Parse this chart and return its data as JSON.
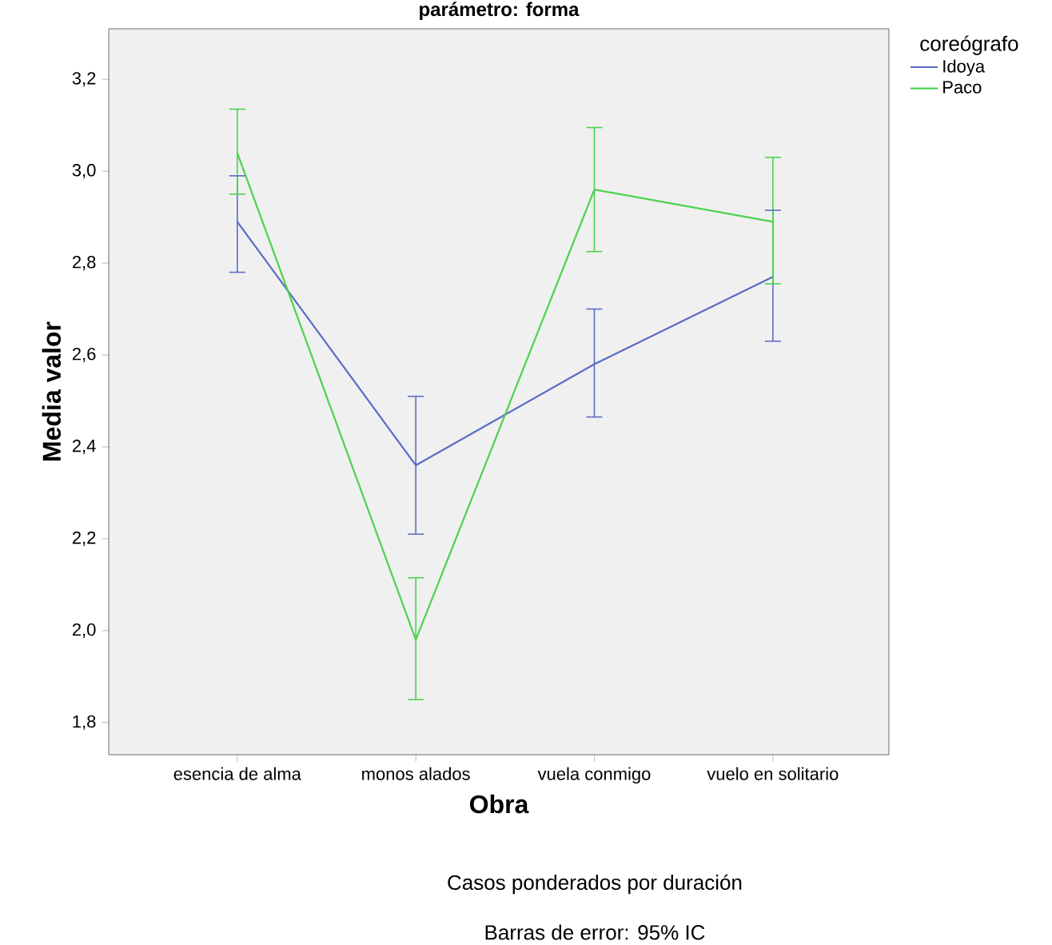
{
  "chart_data": {
    "type": "line",
    "title": "parámetro: forma",
    "xlabel": "Obra",
    "ylabel": "Media valor",
    "legend_title": "coreógrafo",
    "categories": [
      "esencia de alma",
      "monos alados",
      "vuela conmigo",
      "vuelo en solitario"
    ],
    "series": [
      {
        "name": "Idoya",
        "color": "#5b6cc4",
        "values": [
          2.89,
          2.36,
          2.58,
          2.77
        ],
        "errors": [
          [
            2.78,
            2.99
          ],
          [
            2.21,
            2.51
          ],
          [
            2.465,
            2.7
          ],
          [
            2.63,
            2.915
          ]
        ]
      },
      {
        "name": "Paco",
        "color": "#4cd24c",
        "values": [
          3.04,
          1.98,
          2.96,
          2.89
        ],
        "errors": [
          [
            2.95,
            3.135
          ],
          [
            1.85,
            2.115
          ],
          [
            2.825,
            3.095
          ],
          [
            2.755,
            3.03
          ]
        ]
      }
    ],
    "ylim": [
      1.73,
      3.31
    ],
    "yticks": [
      {
        "value": 1.8,
        "label": "1,8"
      },
      {
        "value": 2.0,
        "label": "2,0"
      },
      {
        "value": 2.2,
        "label": "2,2"
      },
      {
        "value": 2.4,
        "label": "2,4"
      },
      {
        "value": 2.6,
        "label": "2,6"
      },
      {
        "value": 2.8,
        "label": "2,8"
      },
      {
        "value": 3.0,
        "label": "3,0"
      },
      {
        "value": 3.2,
        "label": "3,2"
      }
    ],
    "grid": false,
    "legend": "top right",
    "marker": "none",
    "line_style": "solid",
    "annotations": [
      "Casos ponderados por duración",
      "Barras de error: 95% IC"
    ]
  }
}
